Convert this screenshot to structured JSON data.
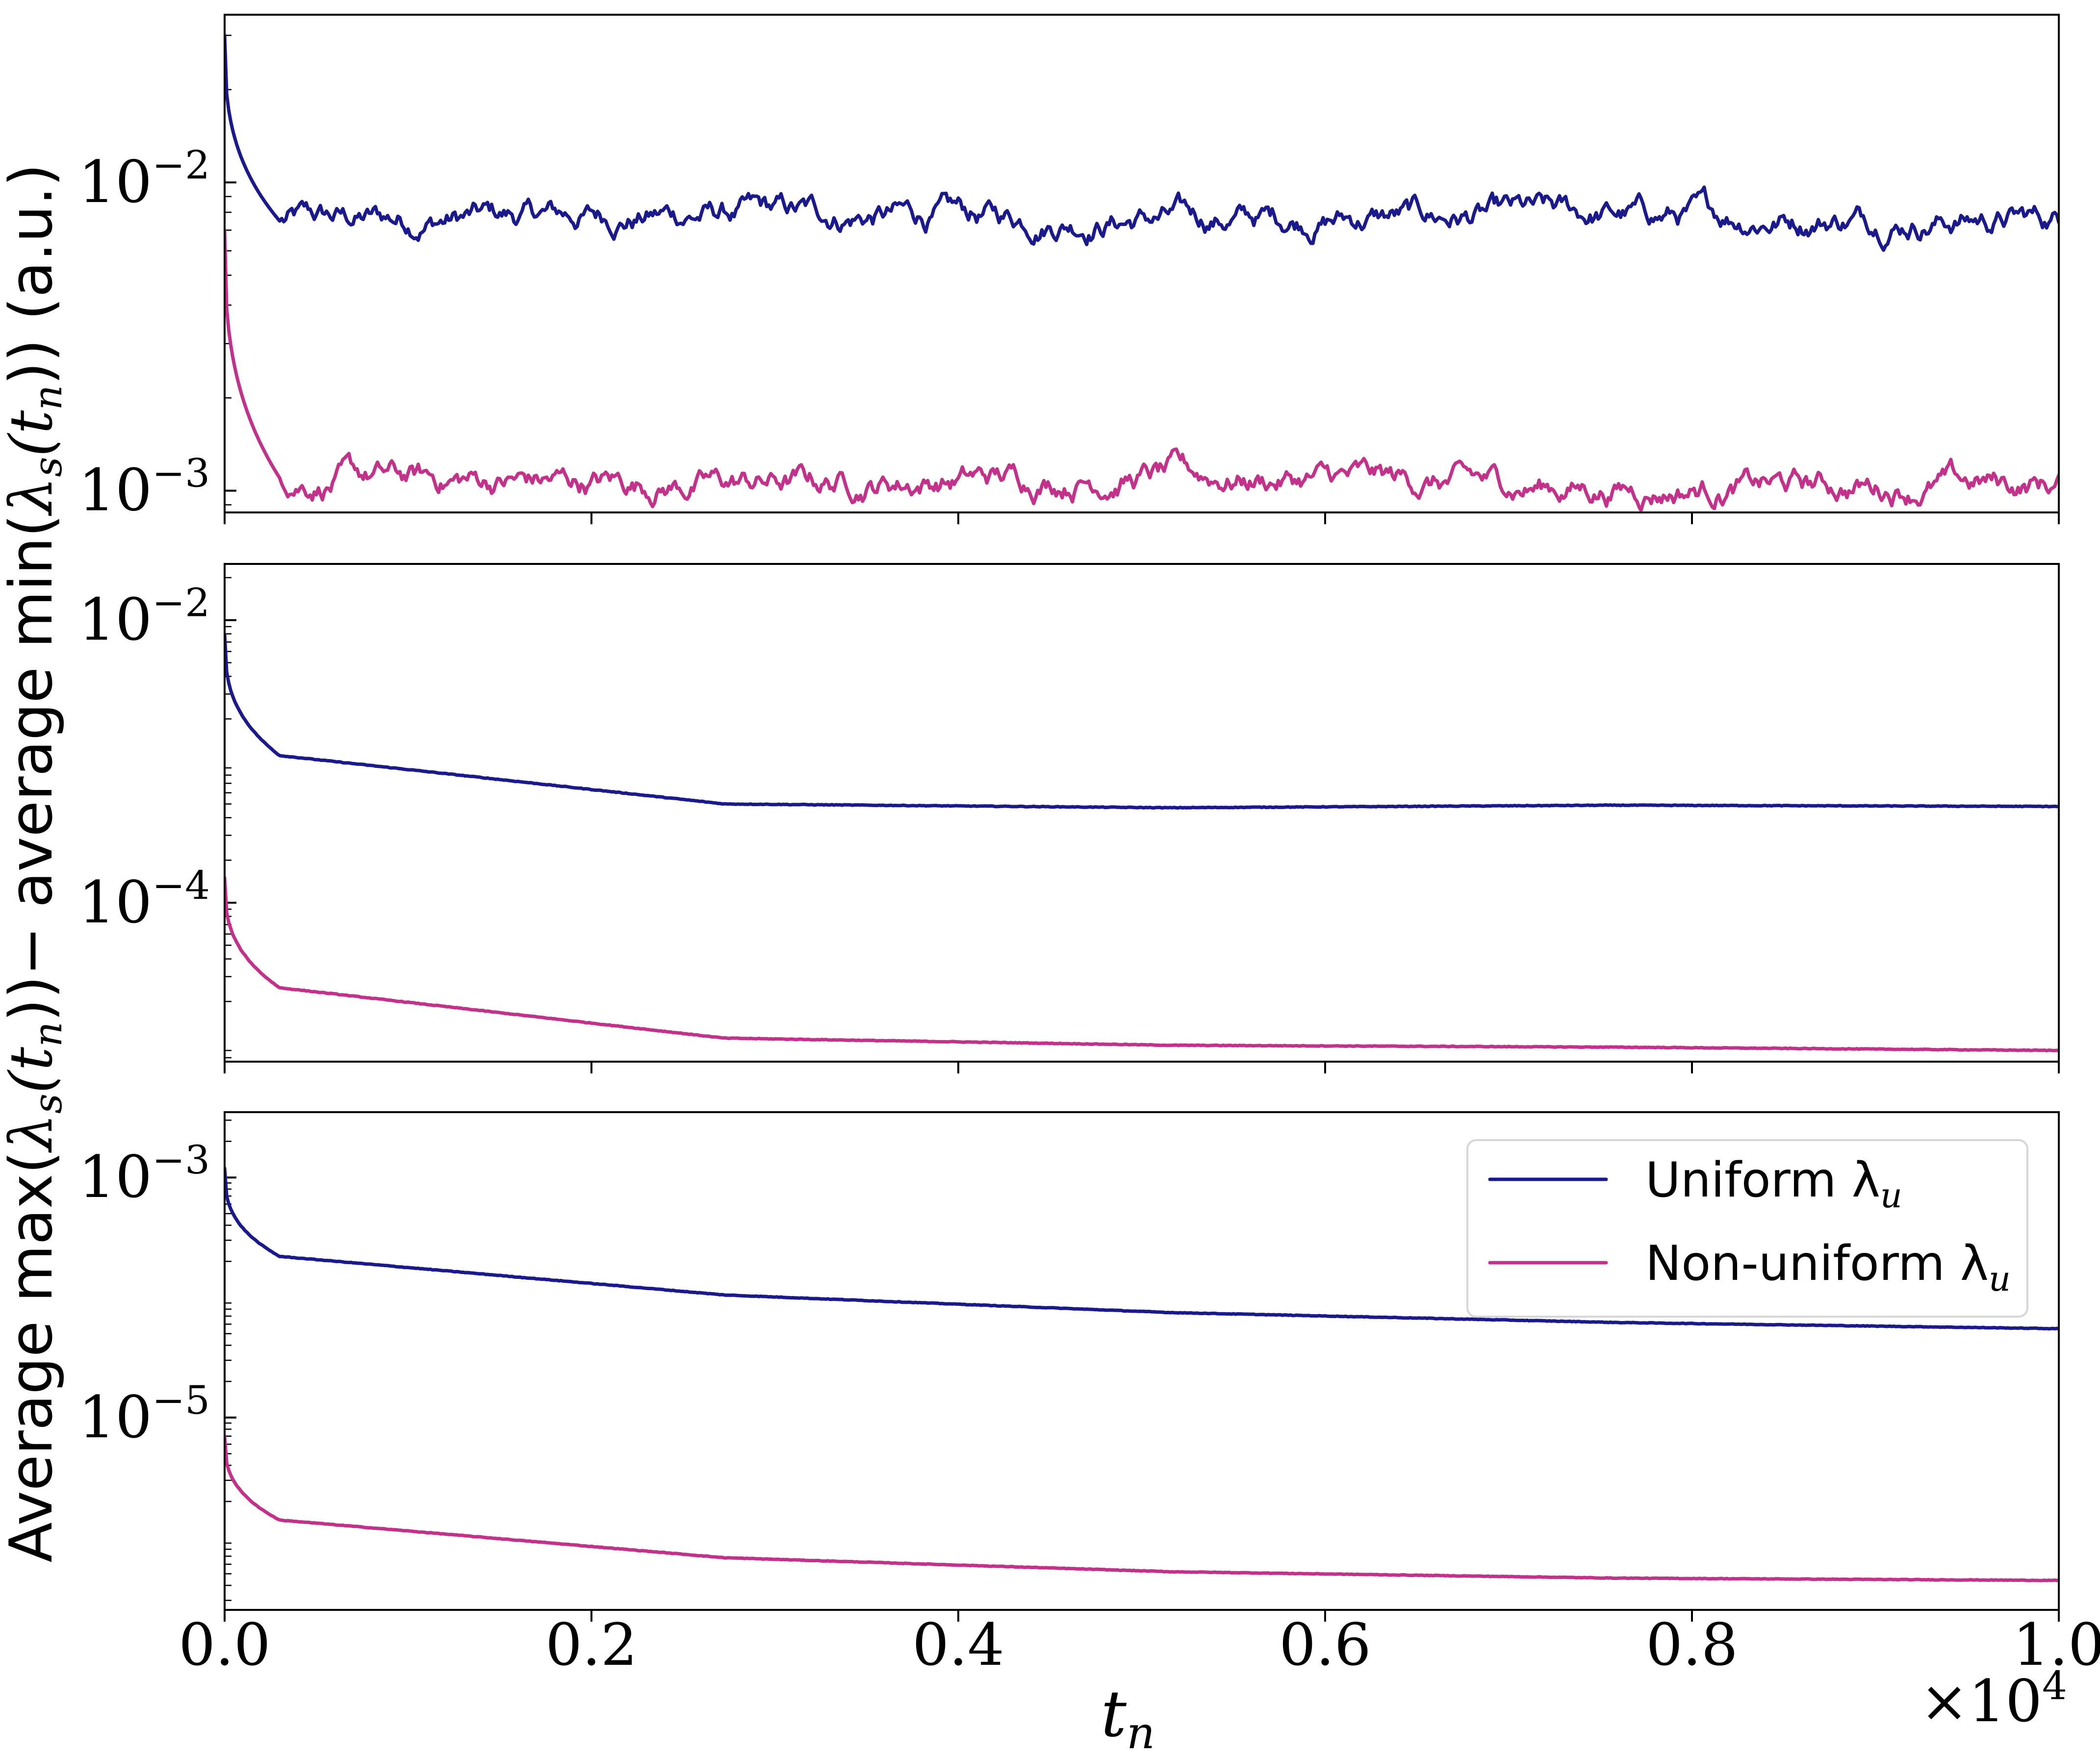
{
  "colors": {
    "uniform": "#1a1a8c",
    "non_uniform": "#c2328a"
  },
  "chart_data": [
    {
      "type": "line",
      "panel": "top",
      "y_scale": "log",
      "ylim": [
        0.00085,
        0.035
      ],
      "xlim": [
        0,
        10000
      ],
      "y_ticks": [
        {
          "mantissa": "10",
          "exp": "−2"
        },
        {
          "mantissa": "10",
          "exp": "−3"
        }
      ],
      "series": [
        {
          "values_y": [
            0.03,
            0.0075,
            0.0079,
            0.0076,
            0.0078,
            0.0076
          ]
        },
        {
          "values_y": [
            0.007,
            0.0011,
            0.00105,
            0.00112,
            0.00102,
            0.00105
          ]
        }
      ]
    },
    {
      "type": "line",
      "panel": "middle",
      "y_scale": "log",
      "ylim": [
        7.5e-06,
        0.025
      ],
      "xlim": [
        0,
        10000
      ],
      "y_ticks": [
        {
          "mantissa": "10",
          "exp": "−2"
        },
        {
          "mantissa": "10",
          "exp": "−4"
        }
      ],
      "series": [
        {
          "values_y": [
            0.008,
            0.0011,
            0.0005,
            0.00047,
            0.00049,
            0.00048
          ]
        },
        {
          "values_y": [
            0.00015,
            2.5e-05,
            1.1e-05,
            9.8e-06,
            9.5e-06,
            9e-06
          ]
        }
      ]
    },
    {
      "type": "line",
      "panel": "bottom",
      "y_scale": "log",
      "ylim": [
        2.5e-07,
        0.0035
      ],
      "xlim": [
        0,
        10000
      ],
      "y_ticks": [
        {
          "mantissa": "10",
          "exp": "−3"
        },
        {
          "mantissa": "10",
          "exp": "−5"
        }
      ],
      "series": [
        {
          "values_y": [
            0.0012,
            0.00022,
            0.000105,
            7.5e-05,
            6.2e-05,
            5.5e-05
          ]
        },
        {
          "values_y": [
            7e-06,
            1.4e-06,
            6.8e-07,
            5.2e-07,
            4.6e-07,
            4.4e-07
          ]
        }
      ]
    }
  ],
  "x_axis": {
    "label": "t",
    "label_sub": "n",
    "ticks": [
      "0.0",
      "0.2",
      "0.4",
      "0.6",
      "0.8",
      "1.0"
    ],
    "offset_text": "×10",
    "offset_exp": "4"
  },
  "y_axis": {
    "label_part1": "Average max(",
    "label_part2": "λ",
    "label_part3": "s",
    "label_part4": "(t",
    "label_part5": "n",
    "label_part6": "))− average min(",
    "label_part7": "λ",
    "label_part8": "s",
    "label_part9": "(t",
    "label_part10": "n",
    "label_part11": ")) (a.u.)"
  },
  "legend": {
    "placement": "upper-right of bottom panel",
    "entries": [
      {
        "label": "Uniform λ",
        "sub": "u"
      },
      {
        "label": "Non-uniform λ",
        "sub": "u"
      }
    ]
  }
}
